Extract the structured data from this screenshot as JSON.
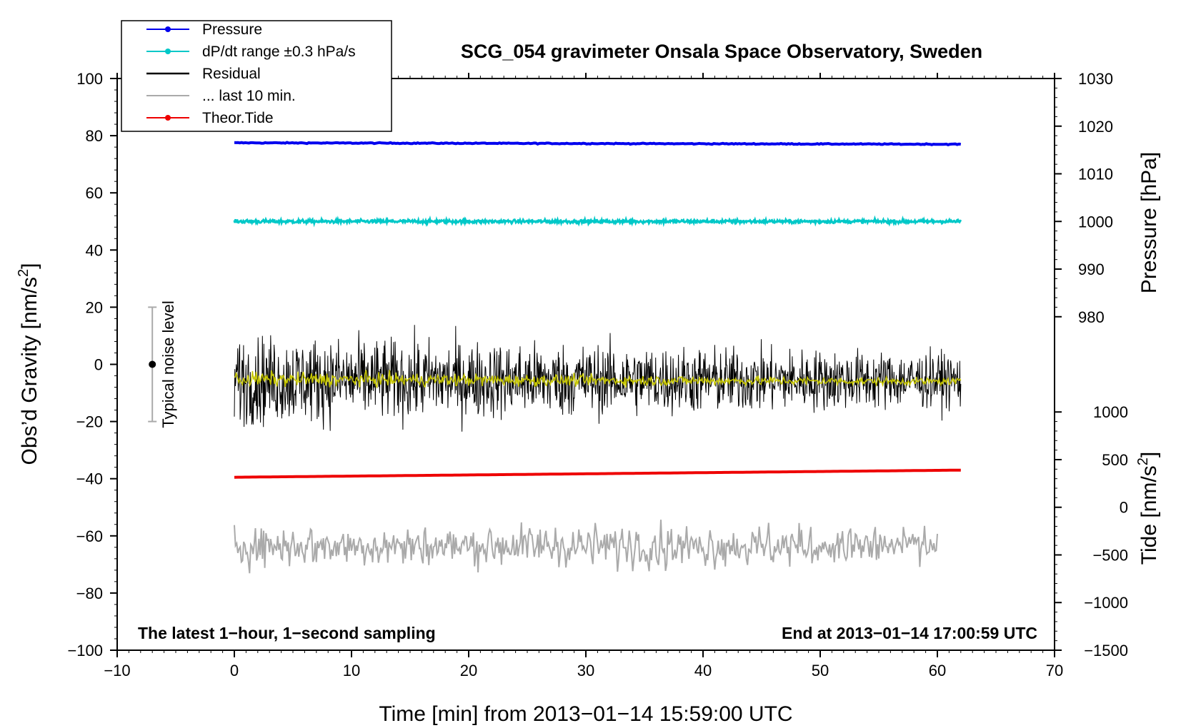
{
  "chart_data": {
    "type": "line",
    "title": "SCG_054 gravimeter Onsala Space Observatory, Sweden",
    "xlabel": "Time [min] from 2013−01−14 15:59:00 UTC",
    "ylabel_main": "Obs’d Gravity [nm/s",
    "ylabel_main_sup": "2",
    "ylabel_main_tail": "]",
    "ylabel_pressure": "Pressure [hPa]",
    "ylabel_tide": "Tide [nm/s",
    "ylabel_tide_sup": "2",
    "ylabel_tide_tail": "]",
    "xlim": [
      -10,
      70
    ],
    "ylim": [
      -100,
      100
    ],
    "x_ticks": [
      "−10",
      "0",
      "10",
      "20",
      "30",
      "40",
      "50",
      "60",
      "70"
    ],
    "x_tick_values": [
      -10,
      0,
      10,
      20,
      30,
      40,
      50,
      60,
      70
    ],
    "y_ticks": [
      "100",
      "80",
      "60",
      "40",
      "20",
      "0",
      "−20",
      "−40",
      "−60",
      "−80",
      "−100"
    ],
    "y_tick_values": [
      100,
      80,
      60,
      40,
      20,
      0,
      -20,
      -40,
      -60,
      -80,
      -100
    ],
    "pressure_ticks": [
      "1030",
      "1020",
      "1010",
      "1000",
      "990",
      "980"
    ],
    "pressure_tick_values": [
      1030,
      1020,
      1010,
      1000,
      990,
      980
    ],
    "pressure_range": [
      1030,
      980
    ],
    "tide_ticks": [
      "1000",
      "500",
      "0",
      "−500",
      "−1000",
      "−1500"
    ],
    "tide_tick_values": [
      1000,
      500,
      0,
      -500,
      -1000,
      -1500
    ],
    "tide_range": [
      1000,
      -1500
    ],
    "annotation_left": "The latest 1−hour, 1−second sampling",
    "annotation_right": "End at 2013−01−14 17:00:59 UTC",
    "noise_label": "Typical noise level",
    "noise_bar": {
      "x": -7,
      "center": 0,
      "low": -20,
      "high": 20
    },
    "legend": [
      {
        "label": "Pressure",
        "color": "#0000ee",
        "marker": true
      },
      {
        "label": "dP/dt range ±0.3 hPa/s",
        "color": "#00c8c8",
        "marker": true
      },
      {
        "label": "Residual",
        "color": "#000000",
        "marker": false
      },
      {
        "label": "... last 10 min.",
        "color": "#aaaaaa",
        "marker": false
      },
      {
        "label": "Theor.Tide",
        "color": "#ee0000",
        "marker": true
      }
    ],
    "series": [
      {
        "name": "Pressure",
        "color": "#0000ee",
        "x_range": [
          0,
          62
        ],
        "y_start": 77.5,
        "y_end": 77.0
      },
      {
        "name": "dP/dt range ±0.3 hPa/s",
        "color": "#00c8c8",
        "x_range": [
          0,
          62
        ],
        "y_center": 50.0,
        "noise": 0.6
      },
      {
        "name": "Residual",
        "color": "#000000",
        "x_range": [
          0,
          62
        ],
        "y_center": -5.5,
        "amplitude": 12
      },
      {
        "name": "Residual smoothed",
        "color": "#c8c800",
        "x_range": [
          0,
          62
        ],
        "y_center": -6.0,
        "amplitude": 2
      },
      {
        "name": "Theor.Tide",
        "color": "#ee0000",
        "x_range": [
          0,
          62
        ],
        "y_start": -39.5,
        "y_end": -37.0
      },
      {
        "name": "... last 10 min.",
        "color": "#aaaaaa",
        "x_range": [
          0,
          60
        ],
        "y_center": -63.5,
        "amplitude": 7
      }
    ]
  }
}
